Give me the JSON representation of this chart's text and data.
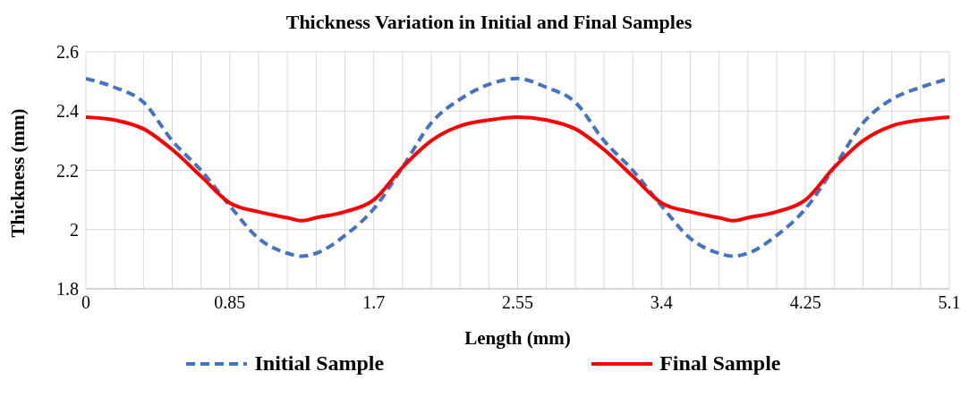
{
  "chart_data": {
    "type": "line",
    "title": "Thickness Variation in Initial and Final Samples",
    "xlabel": "Length (mm)",
    "ylabel": "Thickness (mm)",
    "x": [
      0,
      0.17,
      0.34,
      0.51,
      0.68,
      0.85,
      1.02,
      1.19,
      1.275,
      1.36,
      1.53,
      1.7,
      1.87,
      2.04,
      2.21,
      2.38,
      2.55,
      2.72,
      2.89,
      3.06,
      3.23,
      3.4,
      3.57,
      3.74,
      3.825,
      3.91,
      4.08,
      4.25,
      4.42,
      4.59,
      4.76,
      4.93,
      5.1
    ],
    "series": [
      {
        "name": "Initial Sample",
        "color": "#4472c4",
        "line_style": "dashed",
        "values": [
          2.51,
          2.48,
          2.43,
          2.3,
          2.2,
          2.08,
          1.97,
          1.92,
          1.91,
          1.92,
          1.98,
          2.07,
          2.21,
          2.36,
          2.44,
          2.49,
          2.51,
          2.48,
          2.43,
          2.3,
          2.2,
          2.08,
          1.97,
          1.92,
          1.91,
          1.92,
          1.98,
          2.07,
          2.21,
          2.36,
          2.44,
          2.48,
          2.51
        ]
      },
      {
        "name": "Final Sample",
        "color": "#ff0000",
        "line_style": "solid",
        "values": [
          2.38,
          2.37,
          2.34,
          2.27,
          2.18,
          2.09,
          2.06,
          2.04,
          2.03,
          2.04,
          2.06,
          2.1,
          2.21,
          2.3,
          2.35,
          2.37,
          2.38,
          2.37,
          2.34,
          2.27,
          2.18,
          2.09,
          2.06,
          2.04,
          2.03,
          2.04,
          2.06,
          2.1,
          2.21,
          2.3,
          2.35,
          2.37,
          2.38
        ]
      }
    ],
    "xlim": [
      0,
      5.1
    ],
    "xticks": [
      0,
      {
        "value": 0.17,
        "label": null
      },
      {
        "value": 0.34,
        "label": null
      },
      {
        "value": 0.51,
        "label": null
      },
      {
        "value": 0.68,
        "label": null
      },
      0.85,
      {
        "value": 1.02,
        "label": null
      },
      {
        "value": 1.19,
        "label": null
      },
      {
        "value": 1.36,
        "label": null
      },
      {
        "value": 1.53,
        "label": null
      },
      1.7,
      {
        "value": 1.87,
        "label": null
      },
      {
        "value": 2.04,
        "label": null
      },
      {
        "value": 2.21,
        "label": null
      },
      {
        "value": 2.38,
        "label": null
      },
      2.55,
      {
        "value": 2.72,
        "label": null
      },
      {
        "value": 2.89,
        "label": null
      },
      {
        "value": 3.06,
        "label": null
      },
      {
        "value": 3.23,
        "label": null
      },
      3.4,
      {
        "value": 3.57,
        "label": null
      },
      {
        "value": 3.74,
        "label": null
      },
      {
        "value": 3.91,
        "label": null
      },
      {
        "value": 4.08,
        "label": null
      },
      4.25,
      {
        "value": 4.42,
        "label": null
      },
      {
        "value": 4.59,
        "label": null
      },
      {
        "value": 4.76,
        "label": null
      },
      {
        "value": 4.93,
        "label": null
      },
      5.1
    ],
    "ylim": [
      1.8,
      2.6
    ],
    "yticks": [
      1.8,
      2,
      2.2,
      2.4,
      2.6
    ],
    "grid": true,
    "legend": "bottom",
    "marker": "none"
  }
}
